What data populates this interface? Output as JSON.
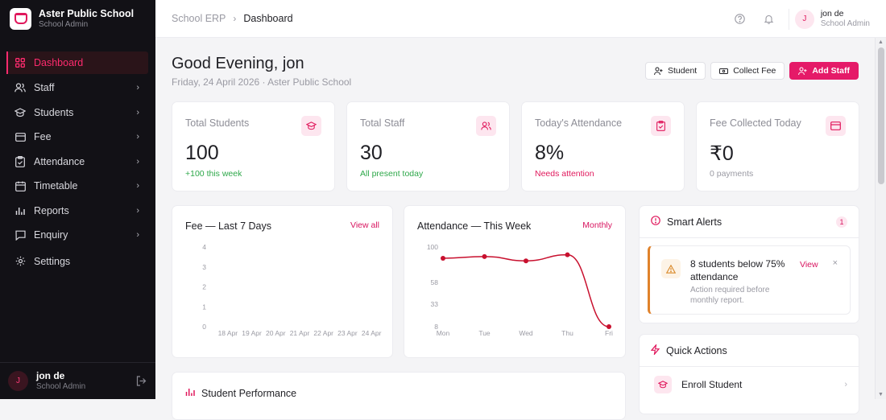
{
  "brand": {
    "title": "Aster Public School",
    "subtitle": "School Admin"
  },
  "sidebar": {
    "items": [
      {
        "label": "Dashboard",
        "icon": "grid-icon"
      },
      {
        "label": "Staff",
        "icon": "users-icon"
      },
      {
        "label": "Students",
        "icon": "graduation-cap-icon"
      },
      {
        "label": "Fee",
        "icon": "wallet-icon"
      },
      {
        "label": "Attendance",
        "icon": "clipboard-icon"
      },
      {
        "label": "Timetable",
        "icon": "calendar-icon"
      },
      {
        "label": "Reports",
        "icon": "bar-chart-icon"
      },
      {
        "label": "Enquiry",
        "icon": "message-icon"
      },
      {
        "label": "Settings",
        "icon": "gear-icon"
      }
    ],
    "user": {
      "initial": "J",
      "name": "jon de",
      "role": "School Admin"
    }
  },
  "topbar": {
    "crumb_root": "School ERP",
    "crumb_sep": "›",
    "crumb_current": "Dashboard",
    "user": {
      "initial": "J",
      "name": "jon de",
      "role": "School Admin"
    }
  },
  "header": {
    "greeting": "Good Evening, jon",
    "subtitle": "Friday, 24 April 2026 · Aster Public School",
    "btn_student": "Student",
    "btn_collect_fee": "Collect Fee",
    "btn_add_staff": "Add Staff"
  },
  "stats": [
    {
      "label": "Total Students",
      "value": "100",
      "note": "+100 this week",
      "note_color": "#2ea84a",
      "icon": "graduation-cap-icon"
    },
    {
      "label": "Total Staff",
      "value": "30",
      "note": "All present today",
      "note_color": "#2ea84a",
      "icon": "users-icon"
    },
    {
      "label": "Today's Attendance",
      "value": "8%",
      "note": "Needs attention",
      "note_color": "#e0185c",
      "icon": "clipboard-check-icon"
    },
    {
      "label": "Fee Collected Today",
      "value": "₹0",
      "note": "0 payments",
      "note_color": "#9a9aa3",
      "icon": "credit-card-icon"
    }
  ],
  "fee_panel": {
    "title": "Fee — Last 7 Days",
    "link": "View all"
  },
  "attendance_panel": {
    "title": "Attendance — This Week",
    "link": "Monthly"
  },
  "chart_data": [
    {
      "type": "bar",
      "title": "Fee — Last 7 Days",
      "categories": [
        "18 Apr",
        "19 Apr",
        "20 Apr",
        "21 Apr",
        "22 Apr",
        "23 Apr",
        "24 Apr"
      ],
      "values": [
        0,
        0,
        0,
        0,
        0,
        0,
        0
      ],
      "yticks": [
        "4",
        "3",
        "2",
        "1",
        "0"
      ],
      "ylim": [
        0,
        4
      ]
    },
    {
      "type": "line",
      "title": "Attendance — This Week",
      "categories": [
        "Mon",
        "Tue",
        "Wed",
        "Thu",
        "Fri"
      ],
      "values": [
        87,
        89,
        84,
        91,
        8
      ],
      "yticks": [
        "100",
        "58",
        "33",
        "8"
      ],
      "ylim": [
        8,
        100
      ],
      "color": "#c8102e"
    }
  ],
  "alerts": {
    "title": "Smart Alerts",
    "count": "1",
    "item": {
      "title": "8 students below 75% attendance",
      "desc": "Action required before monthly report.",
      "action": "View",
      "close": "×"
    }
  },
  "quick_actions": {
    "title": "Quick Actions",
    "items": [
      {
        "label": "Enroll Student",
        "chevron": "›"
      }
    ]
  },
  "performance": {
    "title": "Student Performance"
  },
  "colors": {
    "accent": "#e51a68",
    "sidebar_bg": "#121116",
    "warning": "#e0822a"
  }
}
